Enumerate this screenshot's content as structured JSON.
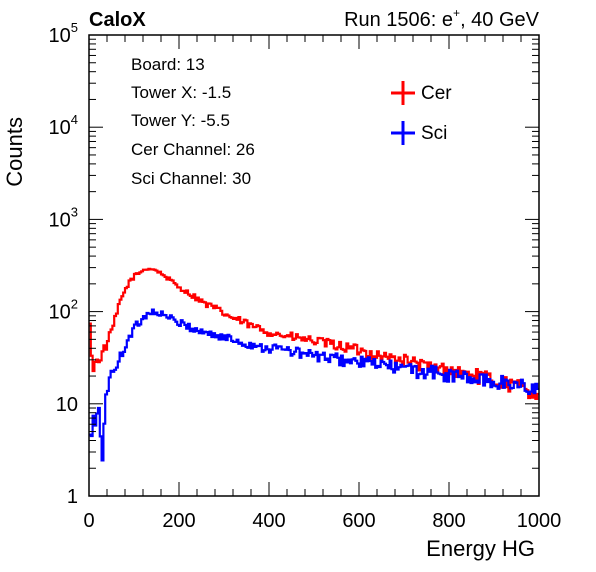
{
  "header": {
    "left": "CaloX",
    "right_prefix": "Run 1506: e",
    "right_sup": "+",
    "right_suffix": ", 40 GeV"
  },
  "info": {
    "lines": [
      "Board: 13",
      "Tower X: -1.5",
      "Tower Y: -5.5",
      "Cer Channel: 26",
      "Sci Channel: 30"
    ]
  },
  "chart_data": {
    "type": "line",
    "xlabel": "Energy HG",
    "ylabel": "Counts",
    "xlim": [
      0,
      1000
    ],
    "ylim": [
      1,
      100000
    ],
    "yscale": "log",
    "x_ticks": [
      0,
      200,
      400,
      600,
      800,
      1000
    ],
    "x_tick_labels": [
      "0",
      "200",
      "400",
      "600",
      "800",
      "1000"
    ],
    "y_tick_labels": [
      {
        "value": 1,
        "base": "1",
        "exp": ""
      },
      {
        "value": 10,
        "base": "10",
        "exp": ""
      },
      {
        "value": 100,
        "base": "10",
        "exp": "2"
      },
      {
        "value": 1000,
        "base": "10",
        "exp": "3"
      },
      {
        "value": 10000,
        "base": "10",
        "exp": "4"
      },
      {
        "value": 100000,
        "base": "10",
        "exp": "5"
      }
    ],
    "legend_position": "top-right",
    "series": [
      {
        "name": "Cer",
        "color": "#ff0000",
        "x": [
          0,
          5,
          10,
          20,
          30,
          40,
          50,
          60,
          70,
          80,
          90,
          100,
          110,
          120,
          130,
          140,
          150,
          160,
          170,
          180,
          190,
          200,
          220,
          240,
          260,
          280,
          300,
          320,
          340,
          360,
          380,
          400,
          420,
          440,
          460,
          480,
          500,
          520,
          540,
          560,
          580,
          600,
          620,
          640,
          660,
          680,
          700,
          720,
          740,
          760,
          780,
          800,
          820,
          840,
          860,
          880,
          900,
          920,
          940,
          960,
          980,
          1000
        ],
        "y": [
          100,
          40,
          25,
          30,
          35,
          45,
          60,
          90,
          130,
          170,
          210,
          240,
          260,
          280,
          295,
          290,
          280,
          260,
          240,
          220,
          200,
          185,
          160,
          140,
          120,
          110,
          95,
          85,
          78,
          70,
          65,
          60,
          57,
          54,
          52,
          50,
          48,
          46,
          44,
          42,
          40,
          38,
          36,
          34,
          32,
          31,
          30,
          28,
          26,
          25,
          24,
          23,
          22,
          21,
          20,
          19,
          18,
          17,
          16,
          15,
          14,
          13
        ]
      },
      {
        "name": "Sci",
        "color": "#0000ff",
        "x": [
          0,
          5,
          10,
          15,
          20,
          25,
          30,
          35,
          40,
          50,
          60,
          70,
          80,
          90,
          100,
          110,
          120,
          130,
          140,
          150,
          160,
          170,
          180,
          190,
          200,
          220,
          240,
          260,
          280,
          300,
          320,
          340,
          360,
          380,
          400,
          420,
          440,
          460,
          480,
          500,
          520,
          540,
          560,
          580,
          600,
          620,
          640,
          660,
          680,
          700,
          720,
          740,
          760,
          780,
          800,
          820,
          840,
          860,
          880,
          900,
          920,
          940,
          960,
          980,
          1000
        ],
        "y": [
          3,
          5,
          6,
          6,
          7,
          7,
          2,
          10,
          15,
          20,
          25,
          32,
          42,
          55,
          65,
          75,
          85,
          95,
          100,
          98,
          95,
          90,
          85,
          80,
          75,
          70,
          62,
          60,
          55,
          52,
          50,
          46,
          44,
          42,
          40,
          40,
          38,
          36,
          35,
          33,
          32,
          31,
          30,
          29,
          28,
          28,
          27,
          26,
          25,
          24,
          23,
          22,
          22,
          21,
          20,
          20,
          19,
          18,
          18,
          17,
          17,
          16,
          16,
          15,
          15
        ]
      }
    ]
  }
}
